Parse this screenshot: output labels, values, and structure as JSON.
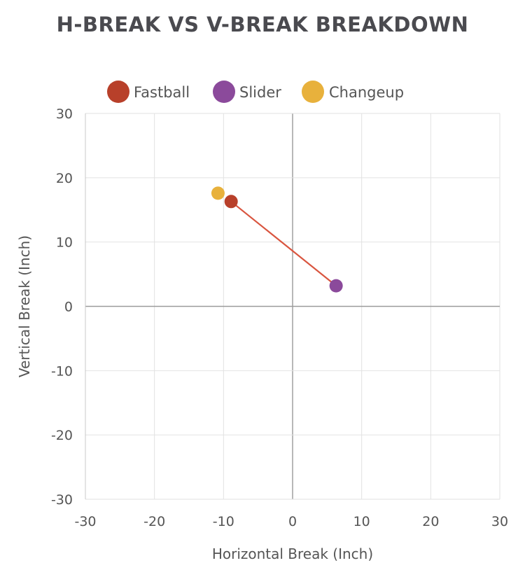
{
  "chart_data": {
    "type": "scatter",
    "title": "H-BREAK VS V-BREAK BREAKDOWN",
    "xlabel": "Horizontal Break (Inch)",
    "ylabel": "Vertical Break (Inch)",
    "xlim": [
      -30,
      30
    ],
    "ylim": [
      -30,
      30
    ],
    "xticks": [
      -30,
      -20,
      -10,
      0,
      10,
      20,
      30
    ],
    "yticks": [
      -30,
      -20,
      -10,
      0,
      10,
      20,
      30
    ],
    "grid": true,
    "legend_position": "top",
    "series": [
      {
        "name": "Fastball",
        "color": "#b8402a",
        "points": [
          {
            "x": -8.9,
            "y": 16.3
          }
        ]
      },
      {
        "name": "Slider",
        "color": "#8b4a9b",
        "points": [
          {
            "x": 6.3,
            "y": 3.2
          }
        ]
      },
      {
        "name": "Changeup",
        "color": "#e8b13c",
        "points": [
          {
            "x": -10.8,
            "y": 17.6
          }
        ]
      }
    ],
    "connector": {
      "color": "#d9553f",
      "from": {
        "x": -8.9,
        "y": 16.3
      },
      "to": {
        "x": 6.3,
        "y": 3.2
      }
    }
  }
}
